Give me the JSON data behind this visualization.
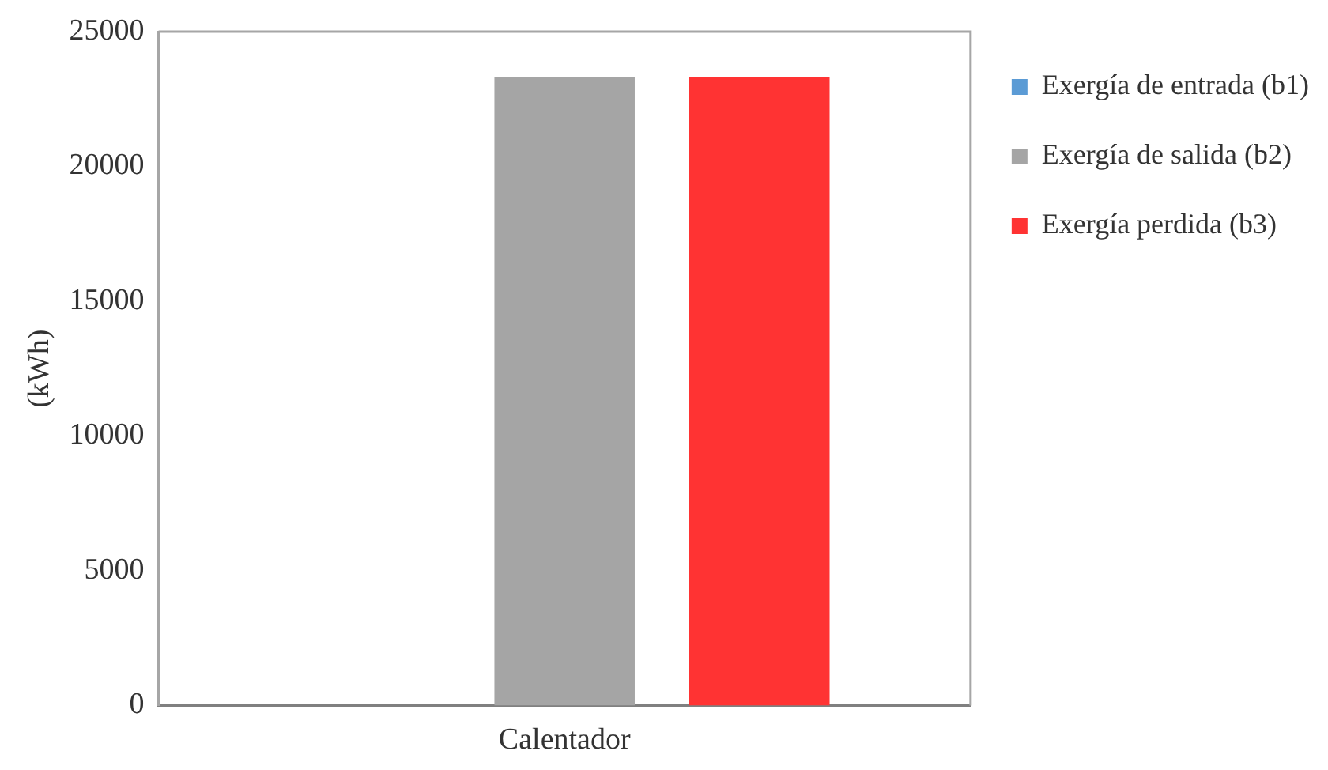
{
  "chart_data": {
    "type": "bar",
    "ylabel": "(kWh)",
    "categories": [
      "Calentador"
    ],
    "series": [
      {
        "name": "Exergía de entrada (b1)",
        "color": "#5b9bd5",
        "values": [
          0
        ]
      },
      {
        "name": "Exergía de salida (b2)",
        "color": "#a5a5a5",
        "values": [
          23300
        ]
      },
      {
        "name": "Exergía perdida (b3)",
        "color": "#ff3333",
        "values": [
          23300
        ]
      }
    ],
    "ylim": [
      0,
      25000
    ],
    "yticks": [
      0,
      5000,
      10000,
      15000,
      20000,
      25000
    ],
    "grid": false,
    "legend": "right"
  }
}
